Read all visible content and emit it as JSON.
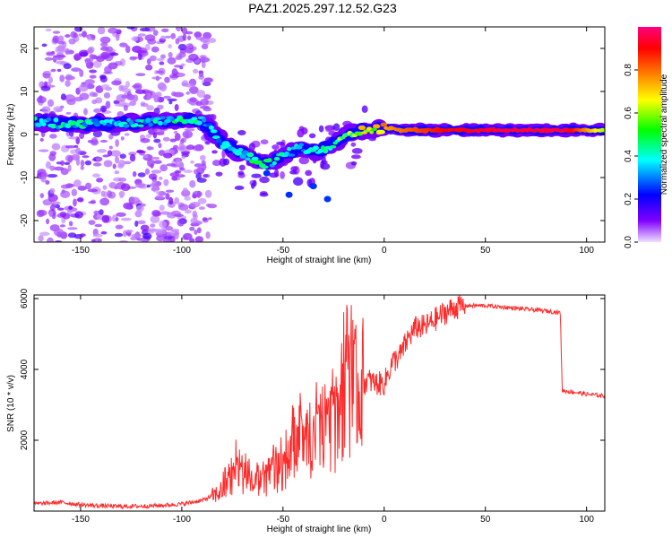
{
  "title": "PAZ1.2025.297.12.52.G23",
  "chart_data": [
    {
      "type": "heatmap",
      "xlabel": "Height of straight line (km)",
      "ylabel": "Frequency (Hz)",
      "xlim": [
        -173,
        109
      ],
      "ylim": [
        -25,
        25
      ],
      "xticks": [
        -150,
        -100,
        -50,
        0,
        50,
        100
      ],
      "yticks": [
        -20,
        -10,
        0,
        10,
        20
      ],
      "colorbar": {
        "label": "Normalized spectral amplitude",
        "range": [
          0,
          1
        ],
        "ticks": [
          "0.0",
          "0.2",
          "0.4",
          "0.6",
          "0.8"
        ],
        "colors": [
          "#f0e0ff",
          "#8000ff",
          "#0000ff",
          "#00ffff",
          "#00ff00",
          "#ffff00",
          "#ff8000",
          "#ff0000",
          "#ff0080"
        ]
      },
      "ridge_x": [
        -173,
        -160,
        -145,
        -130,
        -115,
        -100,
        -90,
        -85,
        -80,
        -72,
        -65,
        -58,
        -50,
        -42,
        -35,
        -28,
        -22,
        -15,
        -8,
        0,
        10,
        30,
        60,
        90,
        109
      ],
      "ridge_y": [
        3,
        2.5,
        2.5,
        2.5,
        3,
        3.5,
        3,
        1,
        -2,
        -4,
        -5.5,
        -7,
        -5,
        -3,
        -4,
        -3,
        -1,
        0.5,
        1,
        1.5,
        1,
        1,
        1,
        1,
        1
      ],
      "ridge_amplitude": [
        0.45,
        0.4,
        0.4,
        0.35,
        0.4,
        0.45,
        0.4,
        0.35,
        0.35,
        0.4,
        0.45,
        0.45,
        0.4,
        0.4,
        0.4,
        0.5,
        0.55,
        0.6,
        0.7,
        0.75,
        0.8,
        0.9,
        0.95,
        0.95,
        0.6
      ],
      "noise_region_x": [
        -170,
        -85
      ]
    },
    {
      "type": "line",
      "xlabel": "Height of straight line (km)",
      "ylabel": "SNR (10 * v/v)",
      "xlim": [
        -173,
        109
      ],
      "ylim": [
        0,
        6100
      ],
      "xticks": [
        -150,
        -100,
        -50,
        0,
        50,
        100
      ],
      "yticks": [
        2000,
        4000,
        6000
      ],
      "series": [
        {
          "name": "SNR",
          "color": "#ff2a2a",
          "x": [
            -173,
            -160,
            -150,
            -140,
            -130,
            -120,
            -110,
            -100,
            -90,
            -82,
            -76,
            -72,
            -68,
            -64,
            -60,
            -55,
            -50,
            -46,
            -42,
            -38,
            -34,
            -30,
            -26,
            -22,
            -20,
            -16,
            -12,
            -8,
            -4,
            0,
            4,
            8,
            12,
            16,
            20,
            25,
            30,
            35,
            40,
            50,
            60,
            70,
            80,
            87,
            88,
            95,
            100,
            109
          ],
          "y": [
            200,
            250,
            180,
            150,
            130,
            140,
            160,
            200,
            300,
            500,
            800,
            1200,
            900,
            700,
            800,
            1000,
            1200,
            1600,
            1800,
            1600,
            2000,
            1900,
            2200,
            2200,
            3200,
            3300,
            3500,
            3700,
            3600,
            3600,
            4200,
            4400,
            4900,
            5200,
            5200,
            5400,
            5600,
            5750,
            5800,
            5800,
            5750,
            5700,
            5650,
            5600,
            3400,
            3350,
            3300,
            3250
          ]
        }
      ]
    }
  ]
}
